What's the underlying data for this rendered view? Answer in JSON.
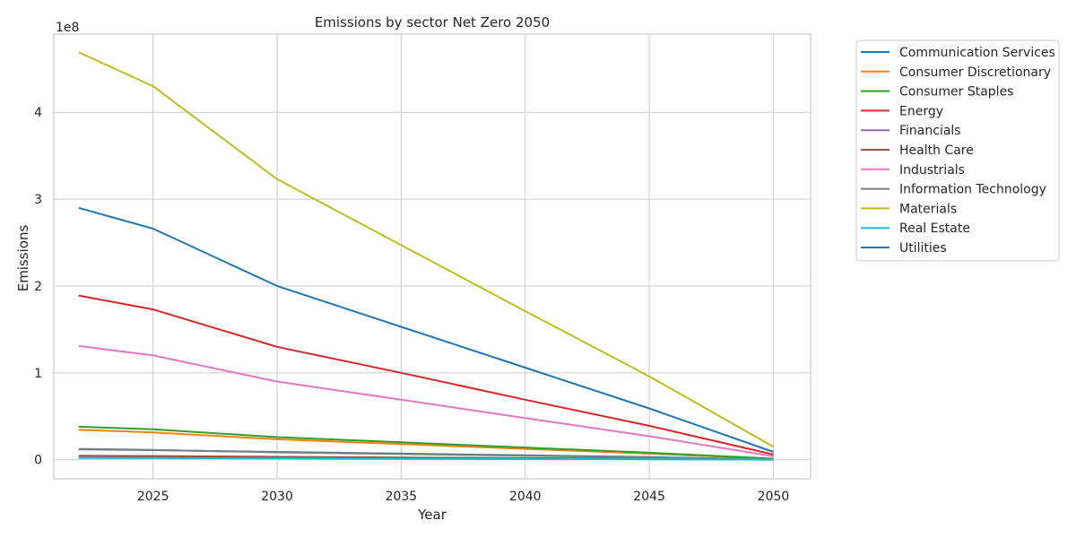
{
  "chart_data": {
    "type": "line",
    "title": "Emissions by sector Net Zero 2050",
    "xlabel": "Year",
    "ylabel": "Emissions",
    "y_multiplier_label": "1e8",
    "x": [
      2022,
      2025,
      2030,
      2035,
      2040,
      2045,
      2050
    ],
    "xlim": [
      2021,
      2051.5
    ],
    "ylim": [
      -0.22,
      4.9
    ],
    "x_ticks": [
      2025,
      2030,
      2035,
      2040,
      2045,
      2050
    ],
    "y_ticks": [
      0,
      1,
      2,
      3,
      4
    ],
    "y_tick_labels": [
      "0",
      "1",
      "2",
      "3",
      "4"
    ],
    "grid": true,
    "legend_position": "outside-right",
    "series": [
      {
        "name": "Communication Services",
        "color": "#1f77b4",
        "values": [
          0.12,
          0.11,
          0.09,
          0.07,
          0.05,
          0.03,
          0.004
        ]
      },
      {
        "name": "Consumer Discretionary",
        "color": "#ff7f0e",
        "values": [
          0.345,
          0.315,
          0.235,
          0.18,
          0.125,
          0.07,
          0.01
        ]
      },
      {
        "name": "Consumer Staples",
        "color": "#2ca02c",
        "values": [
          0.38,
          0.35,
          0.26,
          0.2,
          0.14,
          0.08,
          0.012
        ]
      },
      {
        "name": "Energy",
        "color": "#d62728",
        "values": [
          1.89,
          1.73,
          1.3,
          1.0,
          0.69,
          0.39,
          0.06
        ]
      },
      {
        "name": "Financials",
        "color": "#9467bd",
        "values": [
          0.04,
          0.037,
          0.03,
          0.023,
          0.016,
          0.009,
          0.001
        ]
      },
      {
        "name": "Health Care",
        "color": "#8c564b",
        "values": [
          0.045,
          0.042,
          0.033,
          0.025,
          0.018,
          0.01,
          0.001
        ]
      },
      {
        "name": "Industrials",
        "color": "#e377c2",
        "values": [
          1.31,
          1.2,
          0.9,
          0.69,
          0.48,
          0.27,
          0.04
        ]
      },
      {
        "name": "Information Technology",
        "color": "#7f7f7f",
        "values": [
          0.125,
          0.112,
          0.085,
          0.065,
          0.045,
          0.026,
          0.004
        ]
      },
      {
        "name": "Materials",
        "color": "#bcbd22",
        "values": [
          4.69,
          4.3,
          3.23,
          2.47,
          1.71,
          0.96,
          0.15
        ]
      },
      {
        "name": "Real Estate",
        "color": "#17becf",
        "values": [
          0.02,
          0.018,
          0.014,
          0.011,
          0.008,
          0.004,
          0.001
        ]
      },
      {
        "name": "Utilities",
        "color": "#1f77b4",
        "values": [
          2.9,
          2.66,
          2.0,
          1.53,
          1.06,
          0.59,
          0.09
        ]
      }
    ]
  }
}
